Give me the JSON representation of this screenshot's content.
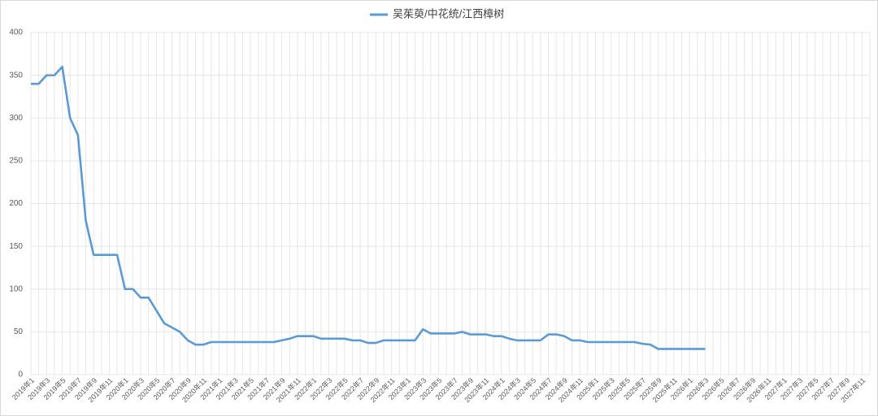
{
  "chart_data": {
    "type": "line",
    "categories": [
      "2019年1",
      null,
      "2019年3",
      null,
      "2019年5",
      null,
      "2019年7",
      null,
      "2019年9",
      null,
      "2019年11",
      null,
      "2020年1",
      null,
      "2020年3",
      null,
      "2020年5",
      null,
      "2020年7",
      null,
      "2020年9",
      null,
      "2020年11",
      null,
      "2021年1",
      null,
      "2021年3",
      null,
      "2021年5",
      null,
      "2021年7",
      null,
      "2021年9",
      null,
      "2021年11",
      null,
      "2022年1",
      null,
      "2022年3",
      null,
      "2022年5",
      null,
      "2022年7",
      null,
      "2022年9",
      null,
      "2022年11",
      null,
      "2023年1",
      null,
      "2023年3",
      null,
      "2023年5",
      null,
      "2023年7",
      null,
      "2023年9",
      null,
      "2023年11",
      null,
      "2024年1",
      null,
      "2024年3",
      null,
      "2024年5",
      null,
      "2024年7",
      null,
      "2024年9",
      null,
      "2024年11",
      null,
      "2025年1",
      null,
      "2025年3",
      null,
      "2025年5",
      null,
      "2025年7",
      null,
      "2025年9",
      null,
      "2025年11",
      null,
      "2026年1",
      null,
      "2026年3",
      null,
      "2026年5",
      null,
      "2026年7",
      null,
      "2026年9",
      null,
      "2026年11",
      null,
      "2027年1",
      null,
      "2027年3",
      null,
      "2027年5",
      null,
      "2027年7",
      null,
      "2027年9",
      null,
      "2027年11",
      null
    ],
    "series": [
      {
        "name": "吴茱萸/中花统/江西樟树",
        "color": "#5b9bd5",
        "values": [
          340,
          340,
          350,
          350,
          360,
          300,
          280,
          180,
          140,
          140,
          140,
          140,
          100,
          100,
          90,
          90,
          75,
          60,
          55,
          50,
          40,
          35,
          35,
          38,
          38,
          38,
          38,
          38,
          38,
          38,
          38,
          38,
          40,
          42,
          45,
          45,
          45,
          42,
          42,
          42,
          42,
          40,
          40,
          37,
          37,
          40,
          40,
          40,
          40,
          40,
          53,
          48,
          48,
          48,
          48,
          50,
          47,
          47,
          47,
          45,
          45,
          42,
          40,
          40,
          40,
          40,
          47,
          47,
          45,
          40,
          40,
          38,
          38,
          38,
          38,
          38,
          38,
          38,
          36,
          35,
          30,
          30,
          30,
          30,
          30,
          30,
          30,
          null,
          null,
          null,
          null,
          null,
          null,
          null,
          null,
          null,
          null,
          null,
          null,
          null,
          null,
          null,
          null,
          null,
          null,
          null,
          null,
          null
        ]
      }
    ],
    "ylim": [
      0,
      400
    ],
    "yticks": [
      0,
      50,
      100,
      150,
      200,
      250,
      300,
      350,
      400
    ],
    "grid": true,
    "legend": "top"
  }
}
